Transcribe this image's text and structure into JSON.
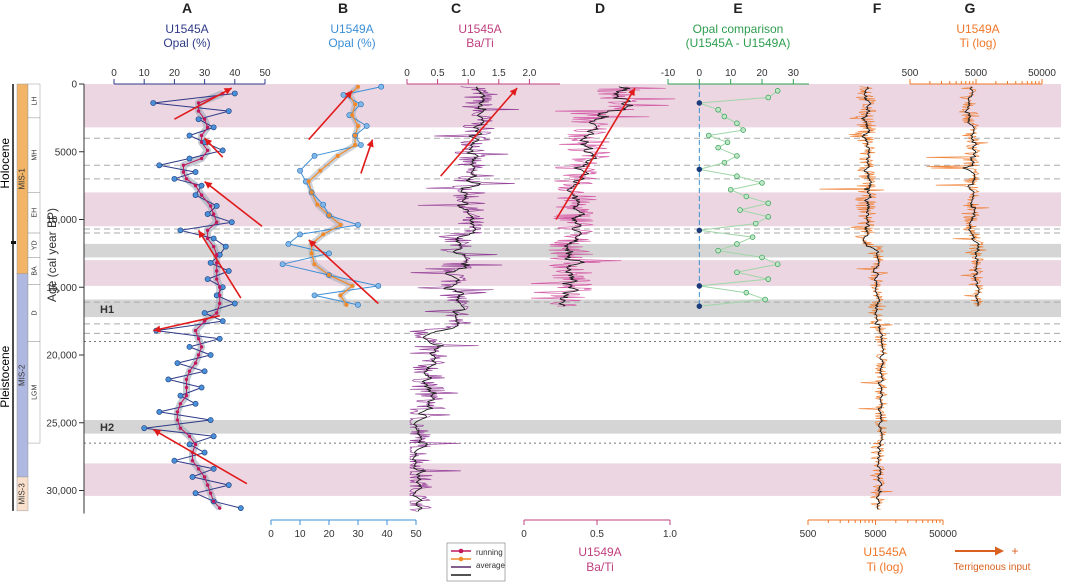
{
  "chart_data": {
    "type": "line",
    "y_axis": {
      "label": "Age (cal year BP)",
      "range": [
        0,
        32000
      ],
      "ticks": [
        0,
        5000,
        10000,
        15000,
        20000,
        25000,
        30000
      ],
      "tick_labels": [
        "0",
        "5000",
        "10,000",
        "15,000",
        "20,000",
        "25,000",
        "30,000"
      ]
    },
    "bands": {
      "pink": [
        [
          0,
          3200
        ],
        [
          8000,
          10500
        ],
        [
          13000,
          14900
        ],
        [
          28000,
          30400
        ]
      ],
      "gray": [
        [
          11800,
          12800
        ],
        [
          15900,
          17200
        ],
        [
          24800,
          25800
        ]
      ],
      "dashed_lines": [
        4000,
        6000,
        7000,
        10700,
        11000,
        16100,
        17700,
        18400
      ],
      "dotted_lines": [
        19000,
        26500
      ],
      "labels": [
        {
          "text": "H1",
          "age": 16600
        },
        {
          "text": "H2",
          "age": 25300
        }
      ]
    },
    "stratigraphy": {
      "epochs": [
        {
          "name": "Holocene",
          "from": 0,
          "to": 11700
        },
        {
          "name": "Pleistocene",
          "from": 11700,
          "to": 31500
        }
      ],
      "mis": [
        {
          "name": "MIS-1",
          "from": 0,
          "to": 14000,
          "color": "#f2b466"
        },
        {
          "name": "MIS-2",
          "from": 14000,
          "to": 29000,
          "color": "#aeb8e0"
        },
        {
          "name": "MIS-3",
          "from": 29000,
          "to": 31500,
          "color": "#f9e0cc"
        }
      ],
      "units": [
        {
          "name": "LH",
          "from": 0,
          "to": 2500
        },
        {
          "name": "MH",
          "from": 2500,
          "to": 8000
        },
        {
          "name": "EH",
          "from": 8000,
          "to": 11000
        },
        {
          "name": "YD",
          "from": 11000,
          "to": 12800
        },
        {
          "name": "BA",
          "from": 12800,
          "to": 14800
        },
        {
          "name": "D",
          "from": 14800,
          "to": 19000
        },
        {
          "name": "LGM",
          "from": 19000,
          "to": 26500
        }
      ]
    },
    "panels": [
      {
        "letter": "A",
        "title1": "U1545A",
        "title2": "Opal (%)",
        "color": "#2e3a87",
        "axis_top": {
          "min": 0,
          "max": 50,
          "ticks": [
            0,
            10,
            20,
            30,
            40,
            50
          ]
        },
        "series": {
          "ages": [
            700,
            1400,
            2000,
            2600,
            3200,
            3800,
            4300,
            4900,
            5500,
            6000,
            6500,
            7000,
            7500,
            8200,
            9000,
            9600,
            10200,
            10800,
            11400,
            12000,
            12600,
            13200,
            13800,
            14400,
            15000,
            15600,
            16200,
            16900,
            17500,
            18200,
            18800,
            19400,
            20000,
            20600,
            21200,
            21800,
            22400,
            23000,
            23600,
            24200,
            24800,
            25400,
            26000,
            26600,
            27200,
            27800,
            28400,
            29000,
            29600,
            30200,
            30800,
            31300
          ],
          "values": [
            40,
            13,
            38,
            28,
            33,
            25,
            30,
            36,
            25,
            15,
            27,
            20,
            29,
            27,
            34,
            31,
            39,
            22,
            33,
            37,
            35,
            32,
            38,
            31,
            36,
            34,
            40,
            30,
            36,
            14,
            35,
            25,
            32,
            21,
            30,
            18,
            29,
            22,
            27,
            15,
            32,
            10,
            33,
            25,
            30,
            20,
            33,
            26,
            38,
            27,
            33,
            42
          ],
          "avg": [
            36,
            28,
            28,
            30,
            31,
            29,
            29,
            31,
            29,
            23,
            23,
            24,
            27,
            29,
            32,
            33,
            34,
            31,
            31,
            33,
            34,
            34,
            34,
            34,
            35,
            35,
            35,
            34,
            30,
            27,
            28,
            29,
            28,
            27,
            25,
            24,
            24,
            24,
            22,
            21,
            21,
            22,
            25,
            27,
            26,
            26,
            28,
            30,
            31,
            32,
            33,
            35
          ]
        },
        "arrows": [
          [
            [
              20,
              2600
            ],
            [
              39,
              300
            ]
          ],
          [
            [
              36,
              5400
            ],
            [
              30,
              4000
            ]
          ],
          [
            [
              49,
              10500
            ],
            [
              30,
              7200
            ]
          ],
          [
            [
              42,
              15800
            ],
            [
              28,
              10800
            ]
          ],
          [
            [
              35,
              17100
            ],
            [
              13,
              18200
            ]
          ],
          [
            [
              44,
              29500
            ],
            [
              13,
              25500
            ]
          ]
        ]
      },
      {
        "letter": "B",
        "title1": "U1549A",
        "title2": "Opal (%)",
        "color": "#3d8fd6",
        "color2": "#f08a2a",
        "axis_bottom": {
          "min": 0,
          "max": 50,
          "ticks": [
            0,
            10,
            20,
            30,
            40,
            50
          ]
        },
        "series": {
          "ages": [
            200,
            800,
            1500,
            2300,
            3100,
            3800,
            4500,
            5300,
            6400,
            7200,
            8000,
            8900,
            9700,
            10400,
            11100,
            11800,
            12500,
            13300,
            14100,
            14900,
            15600,
            16300
          ],
          "values": [
            38,
            25,
            31,
            27,
            33,
            29,
            31,
            15,
            10,
            12,
            14,
            18,
            20,
            30,
            10,
            6,
            20,
            4,
            20,
            37,
            15,
            30
          ],
          "avg2": [
            30,
            27,
            29,
            28,
            30,
            29,
            29,
            23,
            17,
            13,
            14,
            16,
            20,
            24,
            18,
            14,
            14,
            15,
            20,
            28,
            24,
            26
          ]
        },
        "arrows": [
          [
            [
              13,
              4100
            ],
            [
              28,
              500
            ]
          ],
          [
            [
              31,
              6600
            ],
            [
              35,
              4100
            ]
          ],
          [
            [
              37,
              16200
            ],
            [
              13,
              11500
            ]
          ]
        ]
      },
      {
        "letter": "C",
        "title1": "U1545A",
        "title2": "Ba/Ti",
        "color": "#c0407f",
        "axis_top": {
          "min": 0,
          "max": 2.5,
          "ticks": [
            0,
            0.5,
            1.0,
            1.5,
            2.0
          ],
          "tick_labels": [
            "0",
            "0.5",
            "1.0",
            "1.5",
            "2.0"
          ]
        },
        "arrows": [
          [
            [
              0.55,
              6800
            ],
            [
              1.8,
              300
            ]
          ]
        ]
      },
      {
        "letter": "D",
        "title1": "",
        "title2": "",
        "title_bottom1": "U1549A",
        "title_bottom2": "Ba/Ti",
        "color": "#c0407f",
        "axis_bottom": {
          "min": 0,
          "max": 1.0,
          "ticks": [
            0,
            0.5,
            1.0
          ],
          "tick_labels": [
            "0",
            "0.5",
            "1.0"
          ]
        },
        "arrows": [
          [
            [
              0.22,
              10000
            ],
            [
              0.76,
              300
            ]
          ]
        ]
      },
      {
        "letter": "E",
        "title1": "Opal comparison",
        "title2": "(U1545A - U1549A)",
        "color": "#2e9e4f",
        "line_color": "#9fd6a7",
        "axis_top": {
          "min": -10,
          "max": 35,
          "ticks": [
            -10,
            0,
            10,
            20,
            30
          ]
        },
        "series": {
          "ages": [
            500,
            1000,
            1400,
            1900,
            2400,
            2900,
            3400,
            3800,
            4300,
            4700,
            5300,
            5800,
            6300,
            6800,
            7300,
            7800,
            8300,
            8800,
            9300,
            9800,
            10300,
            10800,
            11300,
            11800,
            12300,
            12800,
            13300,
            13900,
            14400,
            14900,
            15400,
            15900,
            16400
          ],
          "values": [
            25,
            22,
            0,
            6,
            8,
            12,
            14,
            3,
            9,
            6,
            12,
            8,
            0,
            12,
            20,
            10,
            15,
            22,
            13,
            22,
            18,
            0,
            17,
            12,
            6,
            20,
            25,
            12,
            22,
            0,
            15,
            21,
            0
          ]
        }
      },
      {
        "letter": "F",
        "title1": "",
        "title2": "",
        "title_bottom1": "U1545A",
        "title_bottom2": "Ti (log)",
        "color": "#f0782a",
        "axis_bottom": {
          "min": 500,
          "max": 50000,
          "ticks": [
            500,
            5000,
            50000
          ],
          "tick_labels": [
            "500",
            "5000",
            "50000"
          ]
        }
      },
      {
        "letter": "G",
        "title1": "U1549A",
        "title2": "Ti (log)",
        "color": "#f0782a",
        "axis_top": {
          "min": 500,
          "max": 50000,
          "ticks": [
            500,
            5000,
            50000
          ],
          "tick_labels": [
            "500",
            "5000",
            "50000"
          ]
        }
      }
    ],
    "legend": {
      "items": [
        "running",
        "average"
      ]
    },
    "annotation": {
      "text": "Terrigenous input",
      "symbol": "+"
    }
  }
}
